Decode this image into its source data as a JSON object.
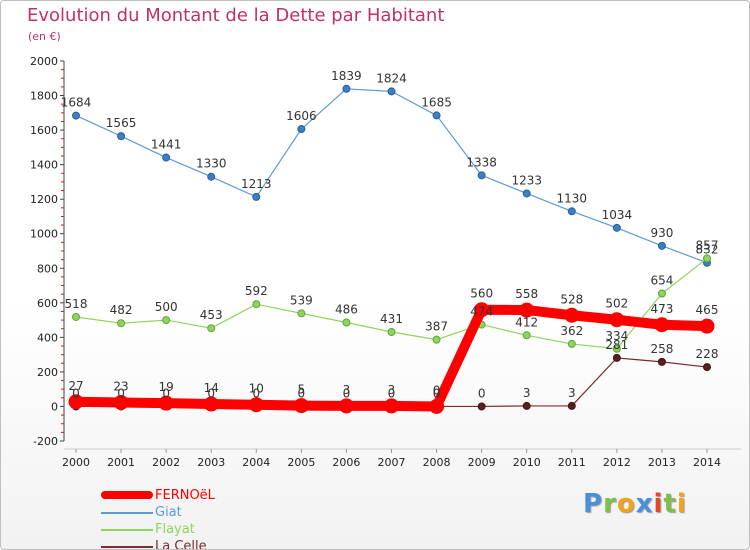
{
  "title": "Evolution du Montant de la Dette par Habitant",
  "unit_label": "(en €)",
  "logo_text": "Proxiti",
  "colors": {
    "title": "#c42f6a",
    "axis": "#444444",
    "tick_marks": "#d01c1c",
    "background": "#ffffff"
  },
  "chart_data": {
    "type": "line",
    "title": "Evolution du Montant de la Dette par Habitant",
    "ylabel": "(en €)",
    "xlabel": "",
    "categories": [
      "2000",
      "2001",
      "2002",
      "2003",
      "2004",
      "2005",
      "2006",
      "2007",
      "2008",
      "2009",
      "2010",
      "2011",
      "2012",
      "2013",
      "2014"
    ],
    "ylim": [
      -200,
      2000
    ],
    "yticks": [
      -200,
      0,
      200,
      400,
      600,
      800,
      1000,
      1200,
      1400,
      1600,
      1800,
      2000
    ],
    "grid": false,
    "legend_position": "bottom-left",
    "series": [
      {
        "name": "FERNOëL",
        "color": "#ff0000",
        "values": [
          27,
          23,
          19,
          14,
          10,
          5,
          3,
          3,
          0,
          560,
          558,
          528,
          502,
          473,
          465
        ],
        "labels": [
          "27",
          "23",
          "19",
          "14",
          "10",
          "5",
          "3",
          "3",
          "0",
          "560",
          "558",
          "528",
          "502",
          "473",
          "465"
        ]
      },
      {
        "name": "Giat",
        "color": "#5a9bd5",
        "values": [
          1684,
          1565,
          1441,
          1330,
          1213,
          1606,
          1839,
          1824,
          1685,
          1338,
          1233,
          1130,
          1034,
          930,
          832
        ],
        "labels": [
          "1684",
          "1565",
          "1441",
          "1330",
          "1213",
          "1606",
          "1839",
          "1824",
          "1685",
          "1338",
          "1233",
          "1130",
          "1034",
          "930",
          "832"
        ]
      },
      {
        "name": "Flayat",
        "color": "#8fd45c",
        "values": [
          518,
          482,
          500,
          453,
          592,
          539,
          486,
          431,
          387,
          474,
          412,
          362,
          334,
          654,
          857
        ],
        "labels": [
          "518",
          "482",
          "500",
          "453",
          "592",
          "539",
          "486",
          "431",
          "387",
          "474",
          "412",
          "362",
          "334",
          "654",
          "857"
        ]
      },
      {
        "name": "La Celle",
        "color": "#7a2b2b",
        "values": [
          0,
          0,
          0,
          0,
          0,
          0,
          0,
          0,
          0,
          0,
          3,
          3,
          281,
          258,
          228
        ],
        "labels": [
          "0",
          "0",
          "0",
          "0",
          "0",
          "0",
          "0",
          "0",
          "0",
          "0",
          "3",
          "3",
          "281",
          "258",
          "228"
        ]
      }
    ]
  }
}
